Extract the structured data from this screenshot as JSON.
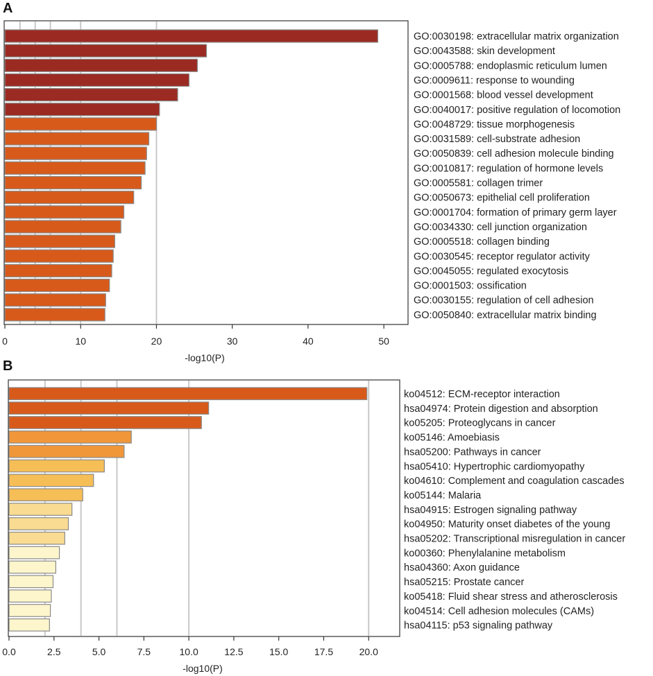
{
  "chart_data": [
    {
      "panel": "A",
      "type": "bar",
      "orientation": "horizontal",
      "xlabel": "-log10(P)",
      "xlim": [
        0,
        52
      ],
      "xticks": [
        0,
        10,
        20,
        30,
        40,
        50
      ],
      "xtick_labels": [
        "0",
        "10",
        "20",
        "30",
        "40",
        "50"
      ],
      "gridlines": [
        2,
        4,
        6,
        10,
        20
      ],
      "categories": [
        "GO:0030198: extracellular matrix organization",
        "GO:0043588: skin development",
        "GO:0005788: endoplasmic reticulum lumen",
        "GO:0009611: response to wounding",
        "GO:0001568: blood vessel development",
        "GO:0040017: positive regulation of locomotion",
        "GO:0048729: tissue morphogenesis",
        "GO:0031589: cell-substrate adhesion",
        "GO:0050839: cell adhesion molecule binding",
        "GO:0010817: regulation of hormone levels",
        "GO:0005581: collagen trimer",
        "GO:0050673: epithelial cell proliferation",
        "GO:0001704: formation of primary germ layer",
        "GO:0034330: cell junction organization",
        "GO:0005518: collagen binding",
        "GO:0030545: receptor regulator activity",
        "GO:0045055: regulated exocytosis",
        "GO:0001503: ossification",
        "GO:0030155: regulation of cell adhesion",
        "GO:0050840: extracellular matrix binding"
      ],
      "values": [
        49.2,
        26.6,
        25.4,
        24.3,
        22.8,
        20.4,
        20.0,
        19.0,
        18.7,
        18.5,
        18.0,
        17.0,
        15.7,
        15.3,
        14.5,
        14.3,
        14.1,
        13.8,
        13.3,
        13.2
      ],
      "colors": [
        "#9b2b22",
        "#9b2b22",
        "#9b2b22",
        "#9b2b22",
        "#9b2b22",
        "#9b2b22",
        "#d85a1b",
        "#d85a1b",
        "#d85a1b",
        "#d85a1b",
        "#d85a1b",
        "#d85a1b",
        "#d85a1b",
        "#d85a1b",
        "#d85a1b",
        "#d85a1b",
        "#d85a1b",
        "#d85a1b",
        "#d85a1b",
        "#d85a1b"
      ]
    },
    {
      "panel": "B",
      "type": "bar",
      "orientation": "horizontal",
      "xlabel": "-log10(P)",
      "xlim": [
        0,
        20.8
      ],
      "xticks": [
        0,
        2.5,
        5,
        7.5,
        10,
        12.5,
        15,
        17.5,
        20
      ],
      "xtick_labels": [
        "0.0",
        "2.5",
        "5.0",
        "7.5",
        "10.0",
        "12.5",
        "15.0",
        "17.5",
        "20.0"
      ],
      "gridlines": [
        2,
        4,
        6,
        10,
        20
      ],
      "categories": [
        "ko04512: ECM-receptor interaction",
        "hsa04974: Protein digestion and absorption",
        "ko05205: Proteoglycans in cancer",
        "ko05146: Amoebiasis",
        "hsa05200: Pathways in cancer",
        "hsa05410: Hypertrophic cardiomyopathy",
        "ko04610: Complement and coagulation cascades",
        "ko05144: Malaria",
        "hsa04915: Estrogen signaling pathway",
        "ko04950: Maturity onset diabetes of the young",
        "hsa05202: Transcriptional misregulation in cancer",
        "ko00360: Phenylalanine metabolism",
        "hsa04360: Axon guidance",
        "hsa05215: Prostate cancer",
        "ko05418: Fluid shear stress and atherosclerosis",
        "ko04514: Cell adhesion molecules (CAMs)",
        "hsa04115: p53 signaling pathway"
      ],
      "values": [
        19.9,
        11.1,
        10.7,
        6.8,
        6.4,
        5.3,
        4.7,
        4.1,
        3.5,
        3.3,
        3.1,
        2.8,
        2.6,
        2.45,
        2.35,
        2.3,
        2.25
      ],
      "colors": [
        "#d85a1b",
        "#d85a1b",
        "#d85a1b",
        "#f0973a",
        "#f0973a",
        "#f6be56",
        "#f6be56",
        "#f6be56",
        "#f9dc92",
        "#f9dc92",
        "#f9dc92",
        "#fdf6cc",
        "#fdf6cc",
        "#fdf6cc",
        "#fdf6cc",
        "#fdf6cc",
        "#fdf6cc"
      ]
    }
  ],
  "panels": {
    "a_label": "A",
    "b_label": "B"
  }
}
